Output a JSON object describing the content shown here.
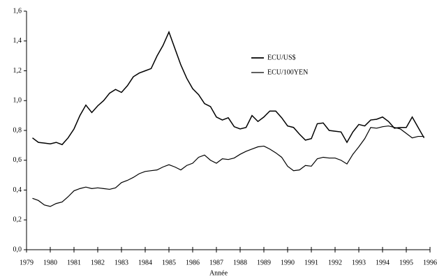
{
  "chart_data": {
    "type": "line",
    "xlabel": "Année",
    "xlim": [
      1979,
      1996
    ],
    "xticks": [
      1979,
      1980,
      1981,
      1982,
      1983,
      1984,
      1985,
      1986,
      1987,
      1988,
      1989,
      1990,
      1991,
      1992,
      1993,
      1994,
      1995,
      1996
    ],
    "ylim": [
      0,
      1.6
    ],
    "yticks": [
      {
        "value": 0,
        "label": "0,0"
      },
      {
        "value": 0.2,
        "label": "0,2"
      },
      {
        "value": 0.4,
        "label": "0,4"
      },
      {
        "value": 0.6,
        "label": "0,6"
      },
      {
        "value": 0.8,
        "label": "0,8"
      },
      {
        "value": 1.0,
        "label": "1,0"
      },
      {
        "value": 1.2,
        "label": "1,2"
      },
      {
        "value": 1.4,
        "label": "1,4"
      },
      {
        "value": 1.6,
        "label": "1,6"
      }
    ],
    "x": [
      1979.25,
      1979.5,
      1979.75,
      1980,
      1980.25,
      1980.5,
      1980.75,
      1981,
      1981.25,
      1981.5,
      1981.75,
      1982,
      1982.25,
      1982.5,
      1982.75,
      1983,
      1983.25,
      1983.5,
      1983.75,
      1984,
      1984.25,
      1984.5,
      1984.75,
      1985,
      1985.25,
      1985.5,
      1985.75,
      1986,
      1986.25,
      1986.5,
      1986.75,
      1987,
      1987.25,
      1987.5,
      1987.75,
      1988,
      1988.25,
      1988.5,
      1988.75,
      1989,
      1989.25,
      1989.5,
      1989.75,
      1990,
      1990.25,
      1990.5,
      1990.75,
      1991,
      1991.25,
      1991.5,
      1991.75,
      1992,
      1992.25,
      1992.5,
      1992.75,
      1993,
      1993.25,
      1993.5,
      1993.75,
      1994,
      1994.25,
      1994.5,
      1994.75,
      1995,
      1995.25,
      1995.5,
      1995.75
    ],
    "series": [
      {
        "name": "ECU/US$",
        "color": "#000000",
        "values": [
          0.75,
          0.72,
          0.715,
          0.71,
          0.72,
          0.705,
          0.75,
          0.81,
          0.9,
          0.97,
          0.92,
          0.965,
          1.0,
          1.05,
          1.075,
          1.055,
          1.1,
          1.16,
          1.185,
          1.2,
          1.215,
          1.3,
          1.37,
          1.46,
          1.35,
          1.24,
          1.15,
          1.08,
          1.04,
          0.98,
          0.96,
          0.89,
          0.87,
          0.885,
          0.825,
          0.81,
          0.82,
          0.9,
          0.86,
          0.89,
          0.93,
          0.93,
          0.885,
          0.83,
          0.82,
          0.775,
          0.735,
          0.745,
          0.845,
          0.85,
          0.8,
          0.795,
          0.79,
          0.72,
          0.79,
          0.84,
          0.83,
          0.87,
          0.875,
          0.89,
          0.86,
          0.815,
          0.82,
          0.82,
          0.89,
          0.82,
          0.75
        ]
      },
      {
        "name": "ECU/100YEN",
        "color": "#000000",
        "values": [
          0.345,
          0.33,
          0.3,
          0.29,
          0.31,
          0.32,
          0.355,
          0.395,
          0.41,
          0.42,
          0.41,
          0.415,
          0.41,
          0.405,
          0.415,
          0.45,
          0.465,
          0.485,
          0.51,
          0.525,
          0.53,
          0.535,
          0.555,
          0.57,
          0.555,
          0.535,
          0.565,
          0.58,
          0.62,
          0.635,
          0.6,
          0.58,
          0.61,
          0.605,
          0.615,
          0.64,
          0.66,
          0.675,
          0.69,
          0.695,
          0.675,
          0.65,
          0.62,
          0.56,
          0.53,
          0.535,
          0.565,
          0.56,
          0.61,
          0.62,
          0.615,
          0.615,
          0.6,
          0.575,
          0.64,
          0.69,
          0.745,
          0.82,
          0.815,
          0.825,
          0.83,
          0.82,
          0.81,
          0.78,
          0.75,
          0.76,
          0.76
        ]
      }
    ]
  }
}
